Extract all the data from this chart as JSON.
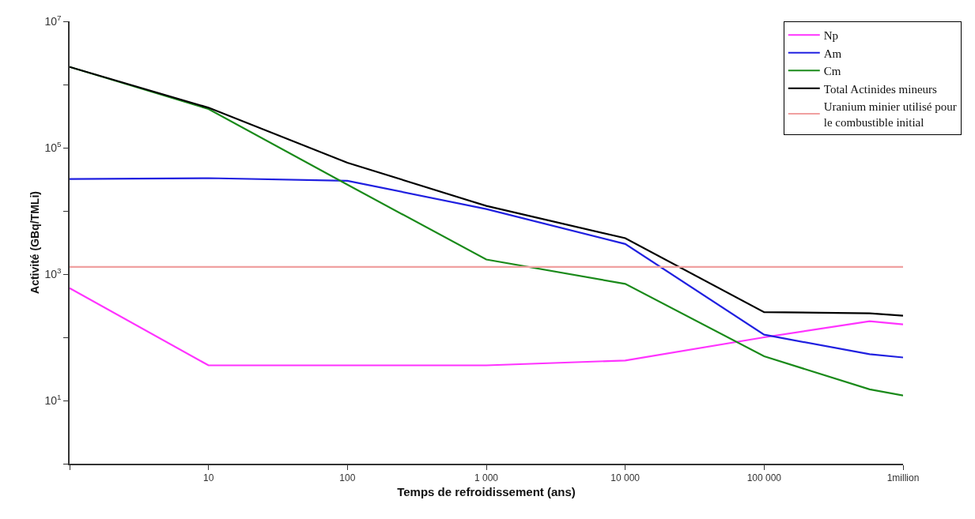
{
  "chart_data": {
    "type": "line",
    "xlabel": "Temps de refroidissement (ans)",
    "ylabel": "Activité (GBq/TMLi)",
    "log": "xy",
    "legend": "top right",
    "marker": "none",
    "line_style": "solid",
    "xlim": [
      1,
      1000000
    ],
    "xticks": [
      {
        "value": 1,
        "label": null
      },
      {
        "value": 10,
        "label": "10"
      },
      {
        "value": 100,
        "label": "100"
      },
      {
        "value": 1000,
        "label": "1 000"
      },
      {
        "value": 10000,
        "label": "10 000"
      },
      {
        "value": 100000,
        "label": "100 000"
      },
      {
        "value": 1000000,
        "label": "1million"
      }
    ],
    "ylim": [
      1,
      10000000
    ],
    "yticks": [
      {
        "value": 1,
        "label": null
      },
      {
        "value": 10,
        "label": "10$^{1}$"
      },
      {
        "value": 100,
        "label": null
      },
      {
        "value": 1000,
        "label": "10$^{3}$"
      },
      {
        "value": 10000,
        "label": null
      },
      {
        "value": 100000,
        "label": "10$^{5}$"
      },
      {
        "value": 1000000,
        "label": null
      },
      {
        "value": 10000000,
        "label": "10$^{7}$"
      }
    ],
    "x": [
      1,
      10,
      100,
      1000,
      10000,
      100000,
      575000,
      1000000
    ],
    "series": [
      {
        "name": "Np",
        "color": "#ff33ff",
        "values": [
          600,
          36,
          36,
          36,
          43,
          100,
          180,
          160
        ]
      },
      {
        "name": "Am",
        "color": "#2020e0",
        "values": [
          32000,
          33000,
          30000,
          10700,
          3000,
          110,
          54,
          48
        ]
      },
      {
        "name": "Cm",
        "color": "#1a8a1a",
        "values": [
          1900000,
          410000,
          26000,
          1700,
          700,
          50,
          15,
          12
        ]
      },
      {
        "name": "Total Actinides mineurs",
        "color": "#000000",
        "values": [
          1900000,
          430000,
          58000,
          12000,
          3700,
          250,
          240,
          220
        ]
      },
      {
        "name": "Uranium minier utilisé pour le combustible initial",
        "color": "#f0a0a0",
        "x": [
          1,
          1000000
        ],
        "values": [
          1300,
          1300
        ]
      }
    ]
  }
}
